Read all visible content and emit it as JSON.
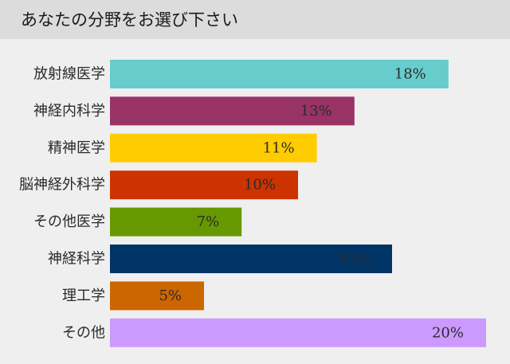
{
  "page": {
    "title": "あなたの分野をお選び下さい"
  },
  "chart_data": {
    "type": "bar",
    "orientation": "horizontal",
    "title": "あなたの分野をお選び下さい",
    "categories": [
      "放射線医学",
      "神経内科学",
      "精神医学",
      "脳神経外科学",
      "その他医学",
      "神経科学",
      "理工学",
      "その他"
    ],
    "values": [
      18,
      13,
      11,
      10,
      7,
      15,
      5,
      20
    ],
    "value_labels": [
      "18%",
      "13%",
      "11%",
      "10%",
      "7%",
      "15%",
      "5%",
      "20%"
    ],
    "unit": "%",
    "colors": [
      "#66cccc",
      "#993366",
      "#ffcc00",
      "#cc3300",
      "#669900",
      "#003366",
      "#cc6600",
      "#cc99ff"
    ],
    "xlim": [
      0,
      20
    ],
    "grid": false,
    "legend": "none"
  }
}
